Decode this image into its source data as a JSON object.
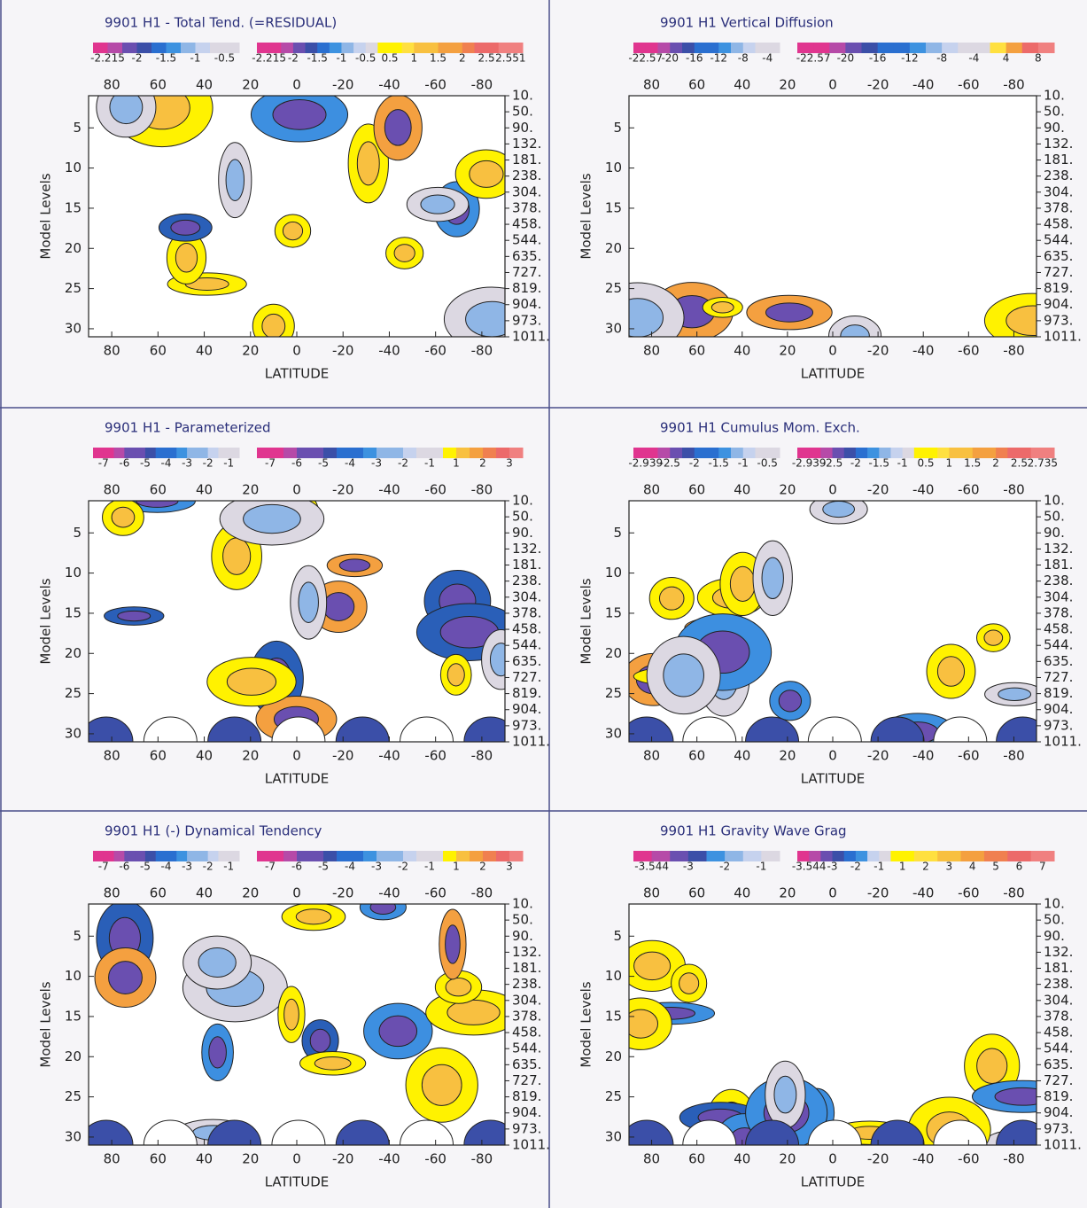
{
  "axes": {
    "x_label": "LATITUDE",
    "y_label": "Model Levels",
    "latitudes": [
      80,
      60,
      40,
      20,
      0,
      -20,
      -40,
      -60,
      -80
    ],
    "levels": [
      5,
      10,
      15,
      20,
      25,
      30
    ],
    "pressures": [
      "10.",
      "50.",
      "90.",
      "132.",
      "181.",
      "238.",
      "304.",
      "378.",
      "458.",
      "544.",
      "635.",
      "727.",
      "819.",
      "904.",
      "973.",
      "1011."
    ]
  },
  "panels": [
    {
      "title": "9901 H1 - Total Tend. (=RESIDUAL)",
      "colorbars": [
        [
          "-2.215",
          "-2",
          "-1.5",
          "-1",
          "-0.5"
        ],
        [
          "-2.215",
          "-2",
          "-1.5",
          "-1",
          "-0.5",
          "0.5",
          "1",
          "1.5",
          "2",
          "2.5",
          "2.551"
        ]
      ]
    },
    {
      "title": "9901 H1 Vertical Diffusion",
      "colorbars": [
        [
          "-22.57",
          "-20",
          "-16",
          "-12",
          "-8",
          "-4"
        ],
        [
          "-22.57",
          "-20",
          "-16",
          "-12",
          "-8",
          "-4",
          "4",
          "8"
        ]
      ]
    },
    {
      "title": "9901 H1 - Parameterized",
      "colorbars": [
        [
          "-7",
          "-6",
          "-5",
          "-4",
          "-3",
          "-2",
          "-1"
        ],
        [
          "-7",
          "-6",
          "-5",
          "-4",
          "-3",
          "-2",
          "-1",
          "1",
          "2",
          "3"
        ]
      ]
    },
    {
      "title": "9901 H1 Cumulus Mom. Exch.",
      "colorbars": [
        [
          "-2.939",
          "-2.5",
          "-2",
          "-1.5",
          "-1",
          "-0.5"
        ],
        [
          "-2.939",
          "-2.5",
          "-2",
          "-1.5",
          "-1",
          "0.5",
          "1",
          "1.5",
          "2",
          "2.5",
          "2.735"
        ]
      ]
    },
    {
      "title": "9901 H1  (-) Dynamical Tendency",
      "colorbars": [
        [
          "-7",
          "-6",
          "-5",
          "-4",
          "-3",
          "-2",
          "-1"
        ],
        [
          "-7",
          "-6",
          "-5",
          "-4",
          "-3",
          "-2",
          "-1",
          "1",
          "2",
          "3"
        ]
      ]
    },
    {
      "title": "9901 H1 Gravity Wave Grag",
      "colorbars": [
        [
          "-3.544",
          "-3",
          "-2",
          "-1"
        ],
        [
          "-3.544",
          "-3",
          "-2",
          "-1",
          "1",
          "2",
          "3",
          "4",
          "5",
          "6",
          "7"
        ]
      ]
    }
  ]
}
